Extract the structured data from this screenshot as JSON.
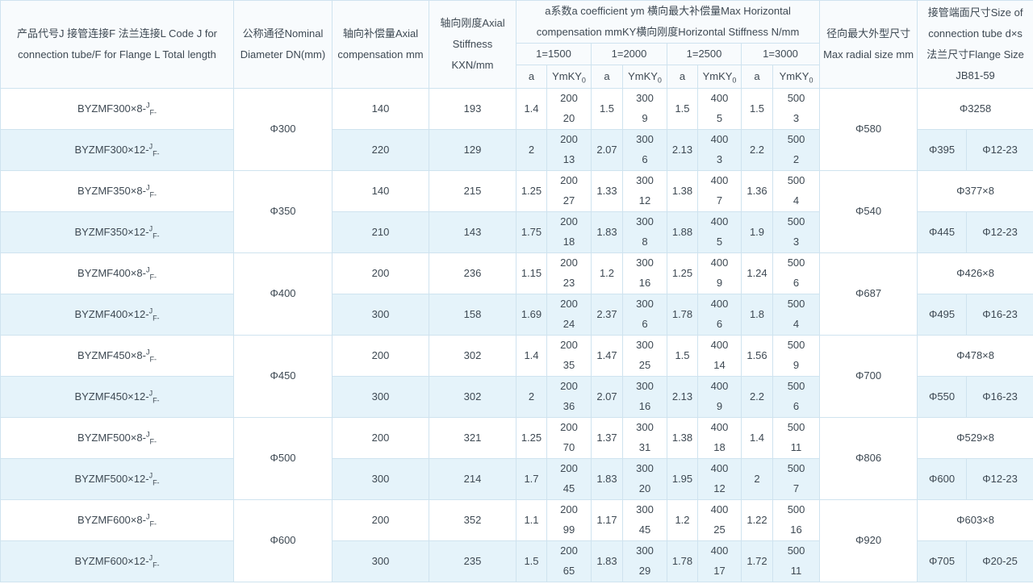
{
  "colors": {
    "border": "#cfe3ef",
    "row_alt_bg": "#e5f3fa",
    "header_bg": "#f8fbfd",
    "text": "#3e4953"
  },
  "table": {
    "header": {
      "product": "产品代号J 接管连接F 法兰连接L Code J for\nconnection tube/F for Flange L Total length",
      "dn": "公称通径Nominal\nDiameter DN(mm)",
      "axial_comp": "轴向补偿量Axial\ncompensation mm",
      "axial_stiff": "轴向刚度Axial\nStiffness\nKXN/mm",
      "group": "a系数a coefficient ym 横向最大补偿量Max Horizontal\ncompensation mmKY横向刚度Horizontal Stiffness N/mm",
      "subgroups": [
        "1=1500",
        "1=2000",
        "1=2500",
        "1=3000"
      ],
      "sub_a": "a",
      "sub_ymky_base": "YmKY",
      "sub_ymky_sub": "0",
      "radial": "径向最大外型尺寸\nMax radial size mm",
      "tube": "接管端面尺寸Size of\nconnection tube d×s\n法兰尺寸Flange Size\nJB81-59"
    },
    "code_suffix": {
      "sup": "J",
      "sub": "F-"
    },
    "groups": [
      {
        "dn": "Φ300",
        "radial": "Φ580",
        "rows": [
          {
            "code": "BYZMF300×8-",
            "comp": "140",
            "stiff": "193",
            "vals": [
              "1.4",
              "200\n20",
              "1.5",
              "300\n9",
              "1.5",
              "400\n5",
              "1.5",
              "500\n3"
            ],
            "tube": "Φ3258"
          },
          {
            "code": "BYZMF300×12-",
            "comp": "220",
            "stiff": "129",
            "vals": [
              "2",
              "200\n13",
              "2.07",
              "300\n6",
              "2.13",
              "400\n3",
              "2.2",
              "500\n2"
            ],
            "flange_d": "Φ395",
            "flange_holes": "Φ12-23"
          }
        ]
      },
      {
        "dn": "Φ350",
        "radial": "Φ540",
        "rows": [
          {
            "code": "BYZMF350×8-",
            "comp": "140",
            "stiff": "215",
            "vals": [
              "1.25",
              "200\n27",
              "1.33",
              "300\n12",
              "1.38",
              "400\n7",
              "1.36",
              "500\n4"
            ],
            "tube": "Φ377×8"
          },
          {
            "code": "BYZMF350×12-",
            "comp": "210",
            "stiff": "143",
            "vals": [
              "1.75",
              "200\n18",
              "1.83",
              "300\n8",
              "1.88",
              "400\n5",
              "1.9",
              "500\n3"
            ],
            "flange_d": "Φ445",
            "flange_holes": "Φ12-23"
          }
        ]
      },
      {
        "dn": "Φ400",
        "radial": "Φ687",
        "rows": [
          {
            "code": "BYZMF400×8-",
            "comp": "200",
            "stiff": "236",
            "vals": [
              "1.15",
              "200\n23",
              "1.2",
              "300\n16",
              "1.25",
              "400\n9",
              "1.24",
              "500\n6"
            ],
            "tube": "Φ426×8"
          },
          {
            "code": "BYZMF400×12-",
            "comp": "300",
            "stiff": "158",
            "vals": [
              "1.69",
              "200\n24",
              "2.37",
              "300\n6",
              "1.78",
              "400\n6",
              "1.8",
              "500\n4"
            ],
            "flange_d": "Φ495",
            "flange_holes": "Φ16-23"
          }
        ]
      },
      {
        "dn": "Φ450",
        "radial": "Φ700",
        "rows": [
          {
            "code": "BYZMF450×8-",
            "comp": "200",
            "stiff": "302",
            "vals": [
              "1.4",
              "200\n35",
              "1.47",
              "300\n25",
              "1.5",
              "400\n14",
              "1.56",
              "500\n9"
            ],
            "tube": "Φ478×8"
          },
          {
            "code": "BYZMF450×12-",
            "comp": "300",
            "stiff": "302",
            "vals": [
              "2",
              "200\n36",
              "2.07",
              "300\n16",
              "2.13",
              "400\n9",
              "2.2",
              "500\n6"
            ],
            "flange_d": "Φ550",
            "flange_holes": "Φ16-23"
          }
        ]
      },
      {
        "dn": "Φ500",
        "radial": "Φ806",
        "rows": [
          {
            "code": "BYZMF500×8-",
            "comp": "200",
            "stiff": "321",
            "vals": [
              "1.25",
              "200\n70",
              "1.37",
              "300\n31",
              "1.38",
              "400\n18",
              "1.4",
              "500\n11"
            ],
            "tube": "Φ529×8"
          },
          {
            "code": "BYZMF500×12-",
            "comp": "300",
            "stiff": "214",
            "vals": [
              "1.7",
              "200\n45",
              "1.83",
              "300\n20",
              "1.95",
              "400\n12",
              "2",
              "500\n7"
            ],
            "flange_d": "Φ600",
            "flange_holes": "Φ12-23"
          }
        ]
      },
      {
        "dn": "Φ600",
        "radial": "Φ920",
        "rows": [
          {
            "code": "BYZMF600×8-",
            "comp": "200",
            "stiff": "352",
            "vals": [
              "1.1",
              "200\n99",
              "1.17",
              "300\n45",
              "1.2",
              "400\n25",
              "1.22",
              "500\n16"
            ],
            "tube": "Φ603×8"
          },
          {
            "code": "BYZMF600×12-",
            "comp": "300",
            "stiff": "235",
            "vals": [
              "1.5",
              "200\n65",
              "1.83",
              "300\n29",
              "1.78",
              "400\n17",
              "1.72",
              "500\n11"
            ],
            "flange_d": "Φ705",
            "flange_holes": "Φ20-25"
          }
        ]
      }
    ]
  }
}
